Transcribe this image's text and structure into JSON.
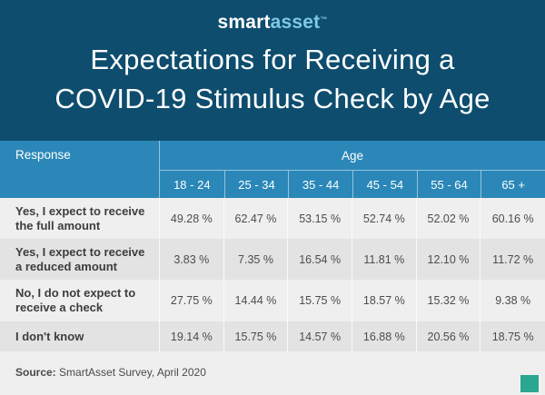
{
  "logo": {
    "part1": "smart",
    "part2": "asset",
    "tm": "™"
  },
  "title": {
    "line1": "Expectations for Receiving a",
    "line2": "COVID-19 Stimulus Check by Age"
  },
  "table": {
    "col_response": "Response",
    "col_age": "Age",
    "age_groups": [
      "18 - 24",
      "25 - 34",
      "35 - 44",
      "45 - 54",
      "55 - 64",
      "65 +"
    ],
    "rows": [
      {
        "label": "Yes, I expect to receive the full amount",
        "values": [
          "49.28 %",
          "62.47 %",
          "53.15 %",
          "52.74 %",
          "52.02 %",
          "60.16 %"
        ]
      },
      {
        "label": "Yes, I expect to receive a reduced amount",
        "values": [
          "3.83 %",
          "7.35 %",
          "16.54 %",
          "11.81 %",
          "12.10 %",
          "11.72 %"
        ]
      },
      {
        "label": "No, I do not expect to receive a check",
        "values": [
          "27.75 %",
          "14.44 %",
          "15.75 %",
          "18.57 %",
          "15.32 %",
          "9.38 %"
        ]
      },
      {
        "label": "I don't know",
        "values": [
          "19.14 %",
          "15.75 %",
          "14.57 %",
          "16.88 %",
          "20.56 %",
          "18.75 %"
        ]
      }
    ]
  },
  "footer": {
    "source_label": "Source:",
    "source_text": "SmartAsset Survey, April 2020"
  },
  "colors": {
    "dark_blue": "#0e4d6e",
    "header_blue": "#2b87b8",
    "logo_accent": "#7ec8e8",
    "brand_teal": "#2aa791",
    "row_light": "#efefef",
    "row_dark": "#e3e3e3"
  },
  "chart_data": {
    "type": "table",
    "title": "Expectations for Receiving a COVID-19 Stimulus Check by Age",
    "categories": [
      "18 - 24",
      "25 - 34",
      "35 - 44",
      "45 - 54",
      "55 - 64",
      "65 +"
    ],
    "series": [
      {
        "name": "Yes, I expect to receive the full amount",
        "values": [
          49.28,
          62.47,
          53.15,
          52.74,
          52.02,
          60.16
        ]
      },
      {
        "name": "Yes, I expect to receive a reduced amount",
        "values": [
          3.83,
          7.35,
          16.54,
          11.81,
          12.1,
          11.72
        ]
      },
      {
        "name": "No, I do not expect to receive a check",
        "values": [
          27.75,
          14.44,
          15.75,
          18.57,
          15.32,
          9.38
        ]
      },
      {
        "name": "I don't know",
        "values": [
          19.14,
          15.75,
          14.57,
          16.88,
          20.56,
          18.75
        ]
      }
    ],
    "unit": "%",
    "source": "SmartAsset Survey, April 2020"
  }
}
